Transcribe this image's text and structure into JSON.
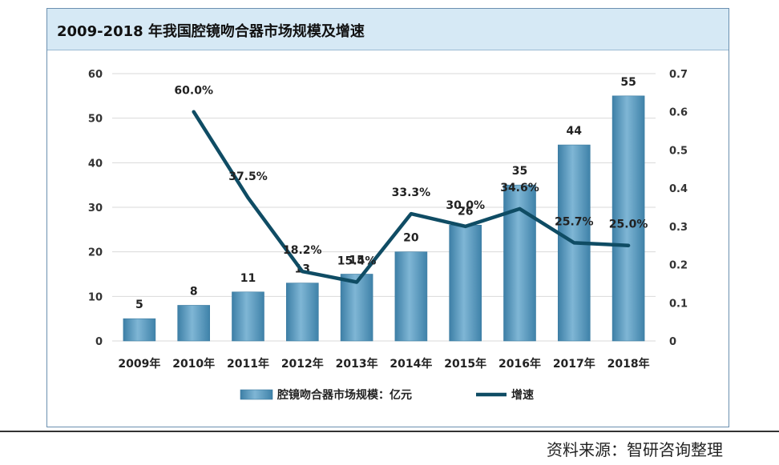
{
  "chart_data": {
    "type": "bar",
    "title": "2009-2018 年我国腔镜吻合器市场规模及增速",
    "categories": [
      "2009年",
      "2010年",
      "2011年",
      "2012年",
      "2013年",
      "2014年",
      "2015年",
      "2016年",
      "2017年",
      "2018年"
    ],
    "series": [
      {
        "name": "腔镜吻合器市场规模：亿元",
        "type": "bar",
        "axis": "left",
        "values": [
          5,
          8,
          11,
          13,
          15,
          20,
          26,
          35,
          44,
          55
        ],
        "labels": [
          "5",
          "8",
          "11",
          "13",
          "15",
          "20",
          "26",
          "35",
          "44",
          "55"
        ]
      },
      {
        "name": "增速",
        "type": "line",
        "axis": "right",
        "values": [
          null,
          0.6,
          0.375,
          0.182,
          0.154,
          0.333,
          0.3,
          0.346,
          0.257,
          0.25
        ],
        "labels": [
          "",
          "60.0%",
          "37.5%",
          "18.2%",
          "15.4%",
          "33.3%",
          "30.0%",
          "34.6%",
          "25.7%",
          "25.0%"
        ]
      }
    ],
    "y_left": {
      "min": 0,
      "max": 60,
      "ticks": [
        "0",
        "10",
        "20",
        "30",
        "40",
        "50",
        "60"
      ]
    },
    "y_right": {
      "min": 0,
      "max": 0.7,
      "ticks": [
        "0",
        "0.1",
        "0.2",
        "0.3",
        "0.4",
        "0.5",
        "0.6",
        "0.7"
      ]
    },
    "grid": true,
    "legend": "bottom",
    "colors": {
      "bar": "#4f93b8",
      "bar_light": "#8ec0dc",
      "line": "#0f4c64",
      "grid": "#d9d9d9"
    }
  },
  "source": "资料来源：智研咨询整理"
}
